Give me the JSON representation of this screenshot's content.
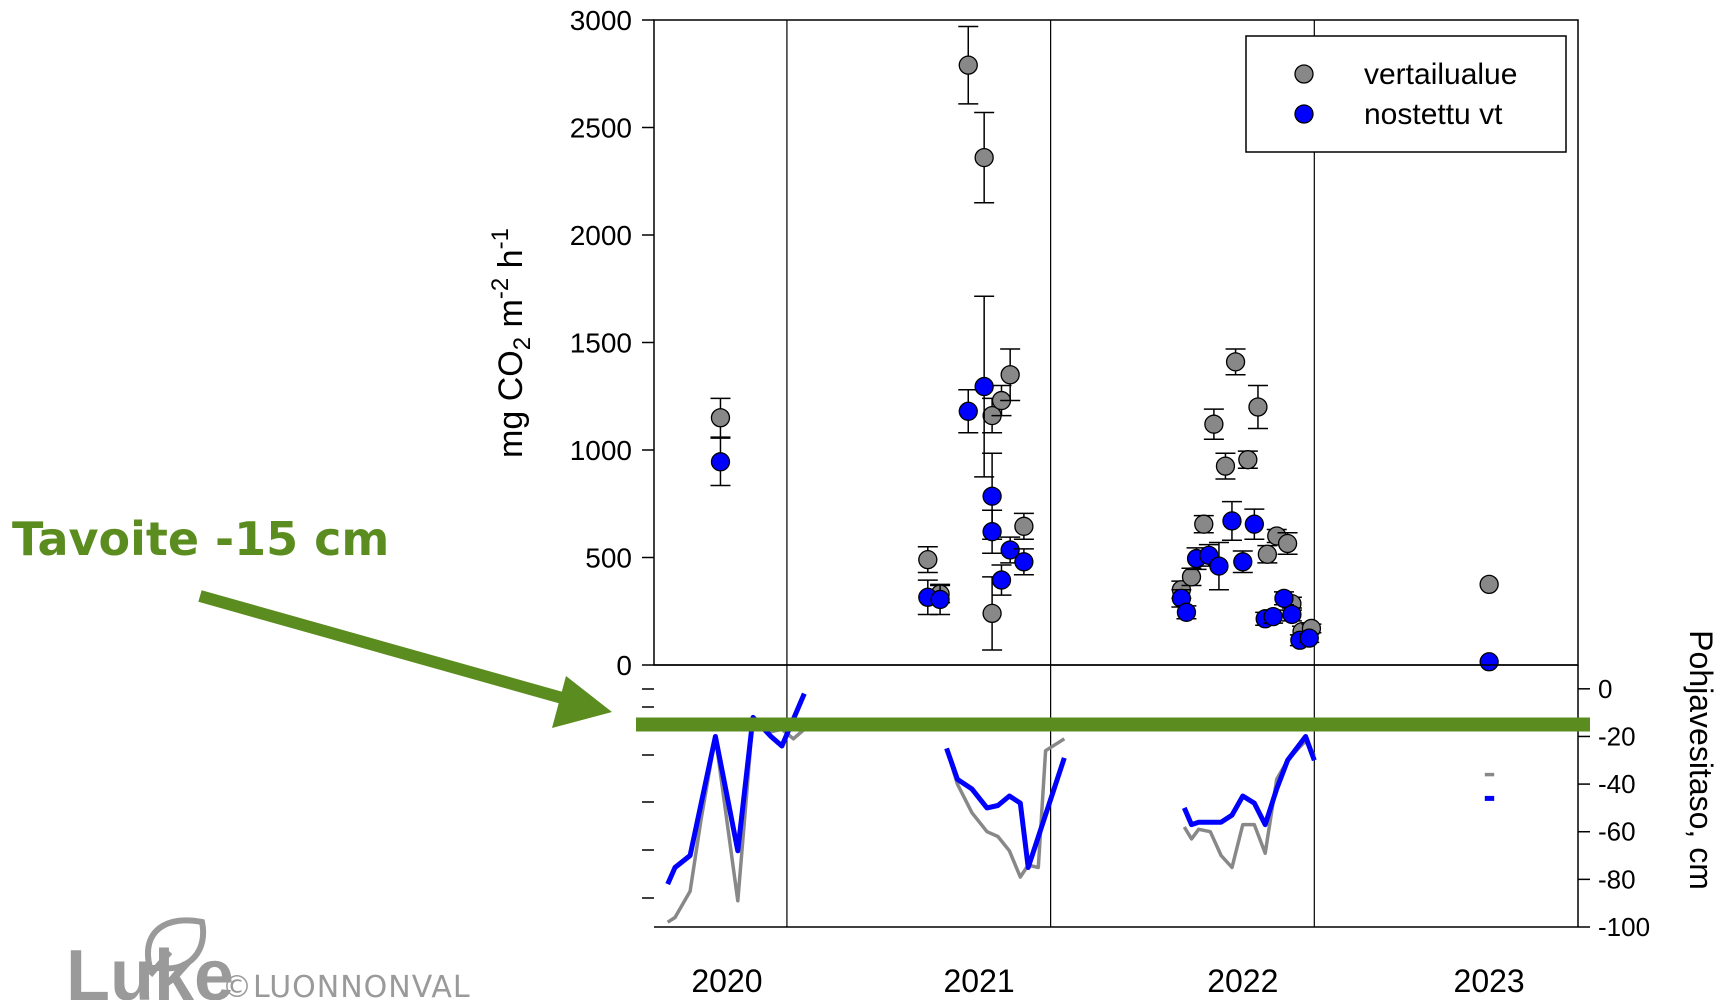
{
  "annotation": {
    "text": "Tavoite -15 cm",
    "color": "#5b8c1f",
    "target_line_value": -15
  },
  "logo": {
    "text": "Luke",
    "icon": "leaf-icon",
    "color": "#9a9a9a"
  },
  "copyright": "©LUONNONVAL",
  "chart_data": [
    {
      "type": "scatter",
      "ylabel": "mg CO2 m-2 h-1",
      "ylabel_parts": {
        "prefix": "mg CO",
        "sub": "2",
        "middle": " m",
        "sup1": "-2",
        "h": " h",
        "sup2": "-1"
      },
      "ylim": [
        0,
        3000
      ],
      "yticks": [
        "0",
        "500",
        "1000",
        "1500",
        "2000",
        "2500",
        "3000"
      ],
      "ytick_values": [
        0,
        500,
        1000,
        1500,
        2000,
        2500,
        3000
      ],
      "xlim": [
        "2020-05-01",
        "2023-11-01"
      ],
      "year_dividers": [
        "2020-11-01",
        "2021-11-01",
        "2022-11-01"
      ],
      "legend": "top-right",
      "series": [
        {
          "name": "vertailualue",
          "color": "#888888",
          "points": [
            {
              "x": "2020-08-01",
              "y": 1150,
              "err": 90
            },
            {
              "x": "2021-05-15",
              "y": 490,
              "err": 60
            },
            {
              "x": "2021-06-01",
              "y": 330,
              "err": 40
            },
            {
              "x": "2021-07-10",
              "y": 2790,
              "err": 180
            },
            {
              "x": "2021-08-01",
              "y": 2360,
              "err": 210
            },
            {
              "x": "2021-08-12",
              "y": 1160,
              "err": 80
            },
            {
              "x": "2021-08-25",
              "y": 1230,
              "err": 70
            },
            {
              "x": "2021-09-06",
              "y": 1350,
              "err": 120
            },
            {
              "x": "2021-08-12",
              "y": 240,
              "err": 170
            },
            {
              "x": "2021-09-25",
              "y": 645,
              "err": 60
            },
            {
              "x": "2022-05-01",
              "y": 350,
              "err": 40
            },
            {
              "x": "2022-05-15",
              "y": 410,
              "err": 40
            },
            {
              "x": "2022-06-01",
              "y": 655,
              "err": 40
            },
            {
              "x": "2022-06-15",
              "y": 1120,
              "err": 70
            },
            {
              "x": "2022-07-01",
              "y": 925,
              "err": 60
            },
            {
              "x": "2022-07-15",
              "y": 1410,
              "err": 60
            },
            {
              "x": "2022-08-01",
              "y": 955,
              "err": 40
            },
            {
              "x": "2022-08-15",
              "y": 1200,
              "err": 100
            },
            {
              "x": "2022-08-28",
              "y": 515,
              "err": 40
            },
            {
              "x": "2022-09-10",
              "y": 600,
              "err": 30
            },
            {
              "x": "2022-09-25",
              "y": 565,
              "err": 50
            },
            {
              "x": "2022-10-01",
              "y": 285,
              "err": 30
            },
            {
              "x": "2022-10-15",
              "y": 155,
              "err": 25
            },
            {
              "x": "2022-10-28",
              "y": 170,
              "err": 20
            },
            {
              "x": "2023-07-01",
              "y": 375,
              "err": 0
            }
          ]
        },
        {
          "name": "nostettu vt",
          "color": "#0000ff",
          "points": [
            {
              "x": "2020-08-01",
              "y": 945,
              "err": 110
            },
            {
              "x": "2021-05-15",
              "y": 315,
              "err": 80
            },
            {
              "x": "2021-06-01",
              "y": 305,
              "err": 70
            },
            {
              "x": "2021-07-10",
              "y": 1180,
              "err": 100
            },
            {
              "x": "2021-08-01",
              "y": 1295,
              "err": 420
            },
            {
              "x": "2021-08-12",
              "y": 785,
              "err": 200
            },
            {
              "x": "2021-08-12",
              "y": 620,
              "err": 100
            },
            {
              "x": "2021-08-25",
              "y": 395,
              "err": 70
            },
            {
              "x": "2021-09-06",
              "y": 535,
              "err": 60
            },
            {
              "x": "2021-09-25",
              "y": 480,
              "err": 60
            },
            {
              "x": "2022-05-01",
              "y": 310,
              "err": 40
            },
            {
              "x": "2022-05-08",
              "y": 245,
              "err": 30
            },
            {
              "x": "2022-05-22",
              "y": 495,
              "err": 50
            },
            {
              "x": "2022-06-08",
              "y": 510,
              "err": 50
            },
            {
              "x": "2022-06-22",
              "y": 460,
              "err": 110
            },
            {
              "x": "2022-07-10",
              "y": 670,
              "err": 90
            },
            {
              "x": "2022-07-25",
              "y": 480,
              "err": 50
            },
            {
              "x": "2022-08-10",
              "y": 655,
              "err": 70
            },
            {
              "x": "2022-08-25",
              "y": 215,
              "err": 30
            },
            {
              "x": "2022-09-05",
              "y": 225,
              "err": 30
            },
            {
              "x": "2022-09-20",
              "y": 310,
              "err": 30
            },
            {
              "x": "2022-10-01",
              "y": 235,
              "err": 30
            },
            {
              "x": "2022-10-12",
              "y": 115,
              "err": 25
            },
            {
              "x": "2022-10-25",
              "y": 125,
              "err": 20
            },
            {
              "x": "2023-07-01",
              "y": 15,
              "err": 0
            }
          ]
        }
      ]
    },
    {
      "type": "line",
      "ylabel": "Pohjavesitaso, cm",
      "ylim": [
        -100,
        10
      ],
      "yticks": [
        "0",
        "-20",
        "-40",
        "-60",
        "-80",
        "-100"
      ],
      "ytick_values": [
        0,
        -20,
        -40,
        -60,
        -80,
        -100
      ],
      "xlim": [
        "2020-05-01",
        "2023-11-01"
      ],
      "x_year_labels": [
        {
          "label": "2020",
          "x": "2020-08-10"
        },
        {
          "label": "2021",
          "x": "2021-07-25"
        },
        {
          "label": "2022",
          "x": "2022-07-25"
        },
        {
          "label": "2023",
          "x": "2023-07-01"
        }
      ],
      "series": [
        {
          "name": "vertailualue",
          "color": "#888888",
          "segments": [
            [
              [
                "2020-05-20",
                -98
              ],
              [
                "2020-05-30",
                -96
              ],
              [
                "2020-06-20",
                -85
              ],
              [
                "2020-07-05",
                -55
              ],
              [
                "2020-07-25",
                -20
              ],
              [
                "2020-08-25",
                -89
              ],
              [
                "2020-09-15",
                -12
              ],
              [
                "2020-10-10",
                -18
              ],
              [
                "2020-10-25",
                -17
              ],
              [
                "2020-11-10",
                -21
              ],
              [
                "2020-11-25",
                -17
              ]
            ],
            [
              [
                "2021-06-10",
                -25
              ],
              [
                "2021-06-25",
                -40
              ],
              [
                "2021-07-15",
                -52
              ],
              [
                "2021-08-05",
                -60
              ],
              [
                "2021-08-20",
                -62
              ],
              [
                "2021-09-05",
                -68
              ],
              [
                "2021-09-20",
                -79
              ],
              [
                "2021-10-01",
                -74
              ],
              [
                "2021-10-15",
                -75
              ],
              [
                "2021-10-25",
                -26
              ],
              [
                "2021-11-20",
                -21
              ]
            ],
            [
              [
                "2022-05-05",
                -58
              ],
              [
                "2022-05-15",
                -63
              ],
              [
                "2022-05-25",
                -59
              ],
              [
                "2022-06-10",
                -60
              ],
              [
                "2022-06-25",
                -70
              ],
              [
                "2022-07-10",
                -75
              ],
              [
                "2022-07-25",
                -57
              ],
              [
                "2022-08-10",
                -57
              ],
              [
                "2022-08-25",
                -69
              ],
              [
                "2022-09-10",
                -38
              ],
              [
                "2022-09-25",
                -30
              ],
              [
                "2022-10-10",
                -25
              ],
              [
                "2022-10-20",
                -22
              ],
              [
                "2022-11-01",
                -28
              ]
            ],
            [
              [
                "2023-06-25",
                -36
              ],
              [
                "2023-07-08",
                -36
              ]
            ]
          ]
        },
        {
          "name": "nostettu vt",
          "color": "#0000ff",
          "segments": [
            [
              [
                "2020-05-20",
                -82
              ],
              [
                "2020-05-30",
                -75
              ],
              [
                "2020-06-20",
                -70
              ],
              [
                "2020-07-25",
                -20
              ],
              [
                "2020-08-25",
                -68
              ],
              [
                "2020-09-15",
                -12
              ],
              [
                "2020-10-10",
                -20
              ],
              [
                "2020-10-25",
                -24
              ],
              [
                "2020-11-25",
                -2
              ]
            ],
            [
              [
                "2021-06-10",
                -25
              ],
              [
                "2021-06-25",
                -38
              ],
              [
                "2021-07-15",
                -42
              ],
              [
                "2021-08-05",
                -50
              ],
              [
                "2021-08-20",
                -49
              ],
              [
                "2021-09-05",
                -45
              ],
              [
                "2021-09-20",
                -48
              ],
              [
                "2021-10-01",
                -75
              ],
              [
                "2021-11-20",
                -29
              ]
            ],
            [
              [
                "2022-05-05",
                -50
              ],
              [
                "2022-05-15",
                -57
              ],
              [
                "2022-05-25",
                -56
              ],
              [
                "2022-06-10",
                -56
              ],
              [
                "2022-06-25",
                -56
              ],
              [
                "2022-07-10",
                -53
              ],
              [
                "2022-07-25",
                -45
              ],
              [
                "2022-08-10",
                -48
              ],
              [
                "2022-08-25",
                -57
              ],
              [
                "2022-09-10",
                -42
              ],
              [
                "2022-09-25",
                -30
              ],
              [
                "2022-10-10",
                -24
              ],
              [
                "2022-10-20",
                -20
              ],
              [
                "2022-11-01",
                -30
              ]
            ],
            [
              [
                "2023-06-25",
                -46
              ],
              [
                "2023-07-08",
                -46
              ]
            ]
          ]
        }
      ]
    }
  ]
}
